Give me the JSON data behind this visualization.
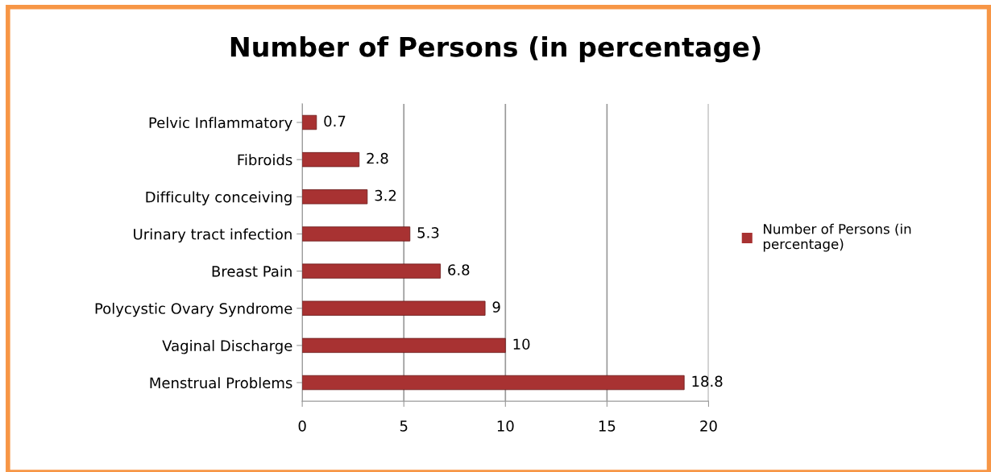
{
  "chart_data": {
    "type": "bar",
    "orientation": "horizontal",
    "title": "Number of Persons (in percentage)",
    "categories": [
      "Pelvic Inflammatory",
      "Fibroids",
      "Difficulty conceiving",
      "Urinary tract infection",
      "Breast Pain",
      "Polycystic Ovary Syndrome",
      "Vaginal Discharge",
      "Menstrual Problems"
    ],
    "series": [
      {
        "name": "Number of Persons (in percentage)",
        "color": "#a83232",
        "values": [
          0.7,
          2.8,
          3.2,
          5.3,
          6.8,
          9,
          10,
          18.8
        ]
      }
    ],
    "xlim": [
      0,
      20
    ],
    "xticks": [
      0,
      5,
      10,
      15,
      20
    ],
    "grid": "x",
    "legend": "right",
    "data_labels": true
  }
}
